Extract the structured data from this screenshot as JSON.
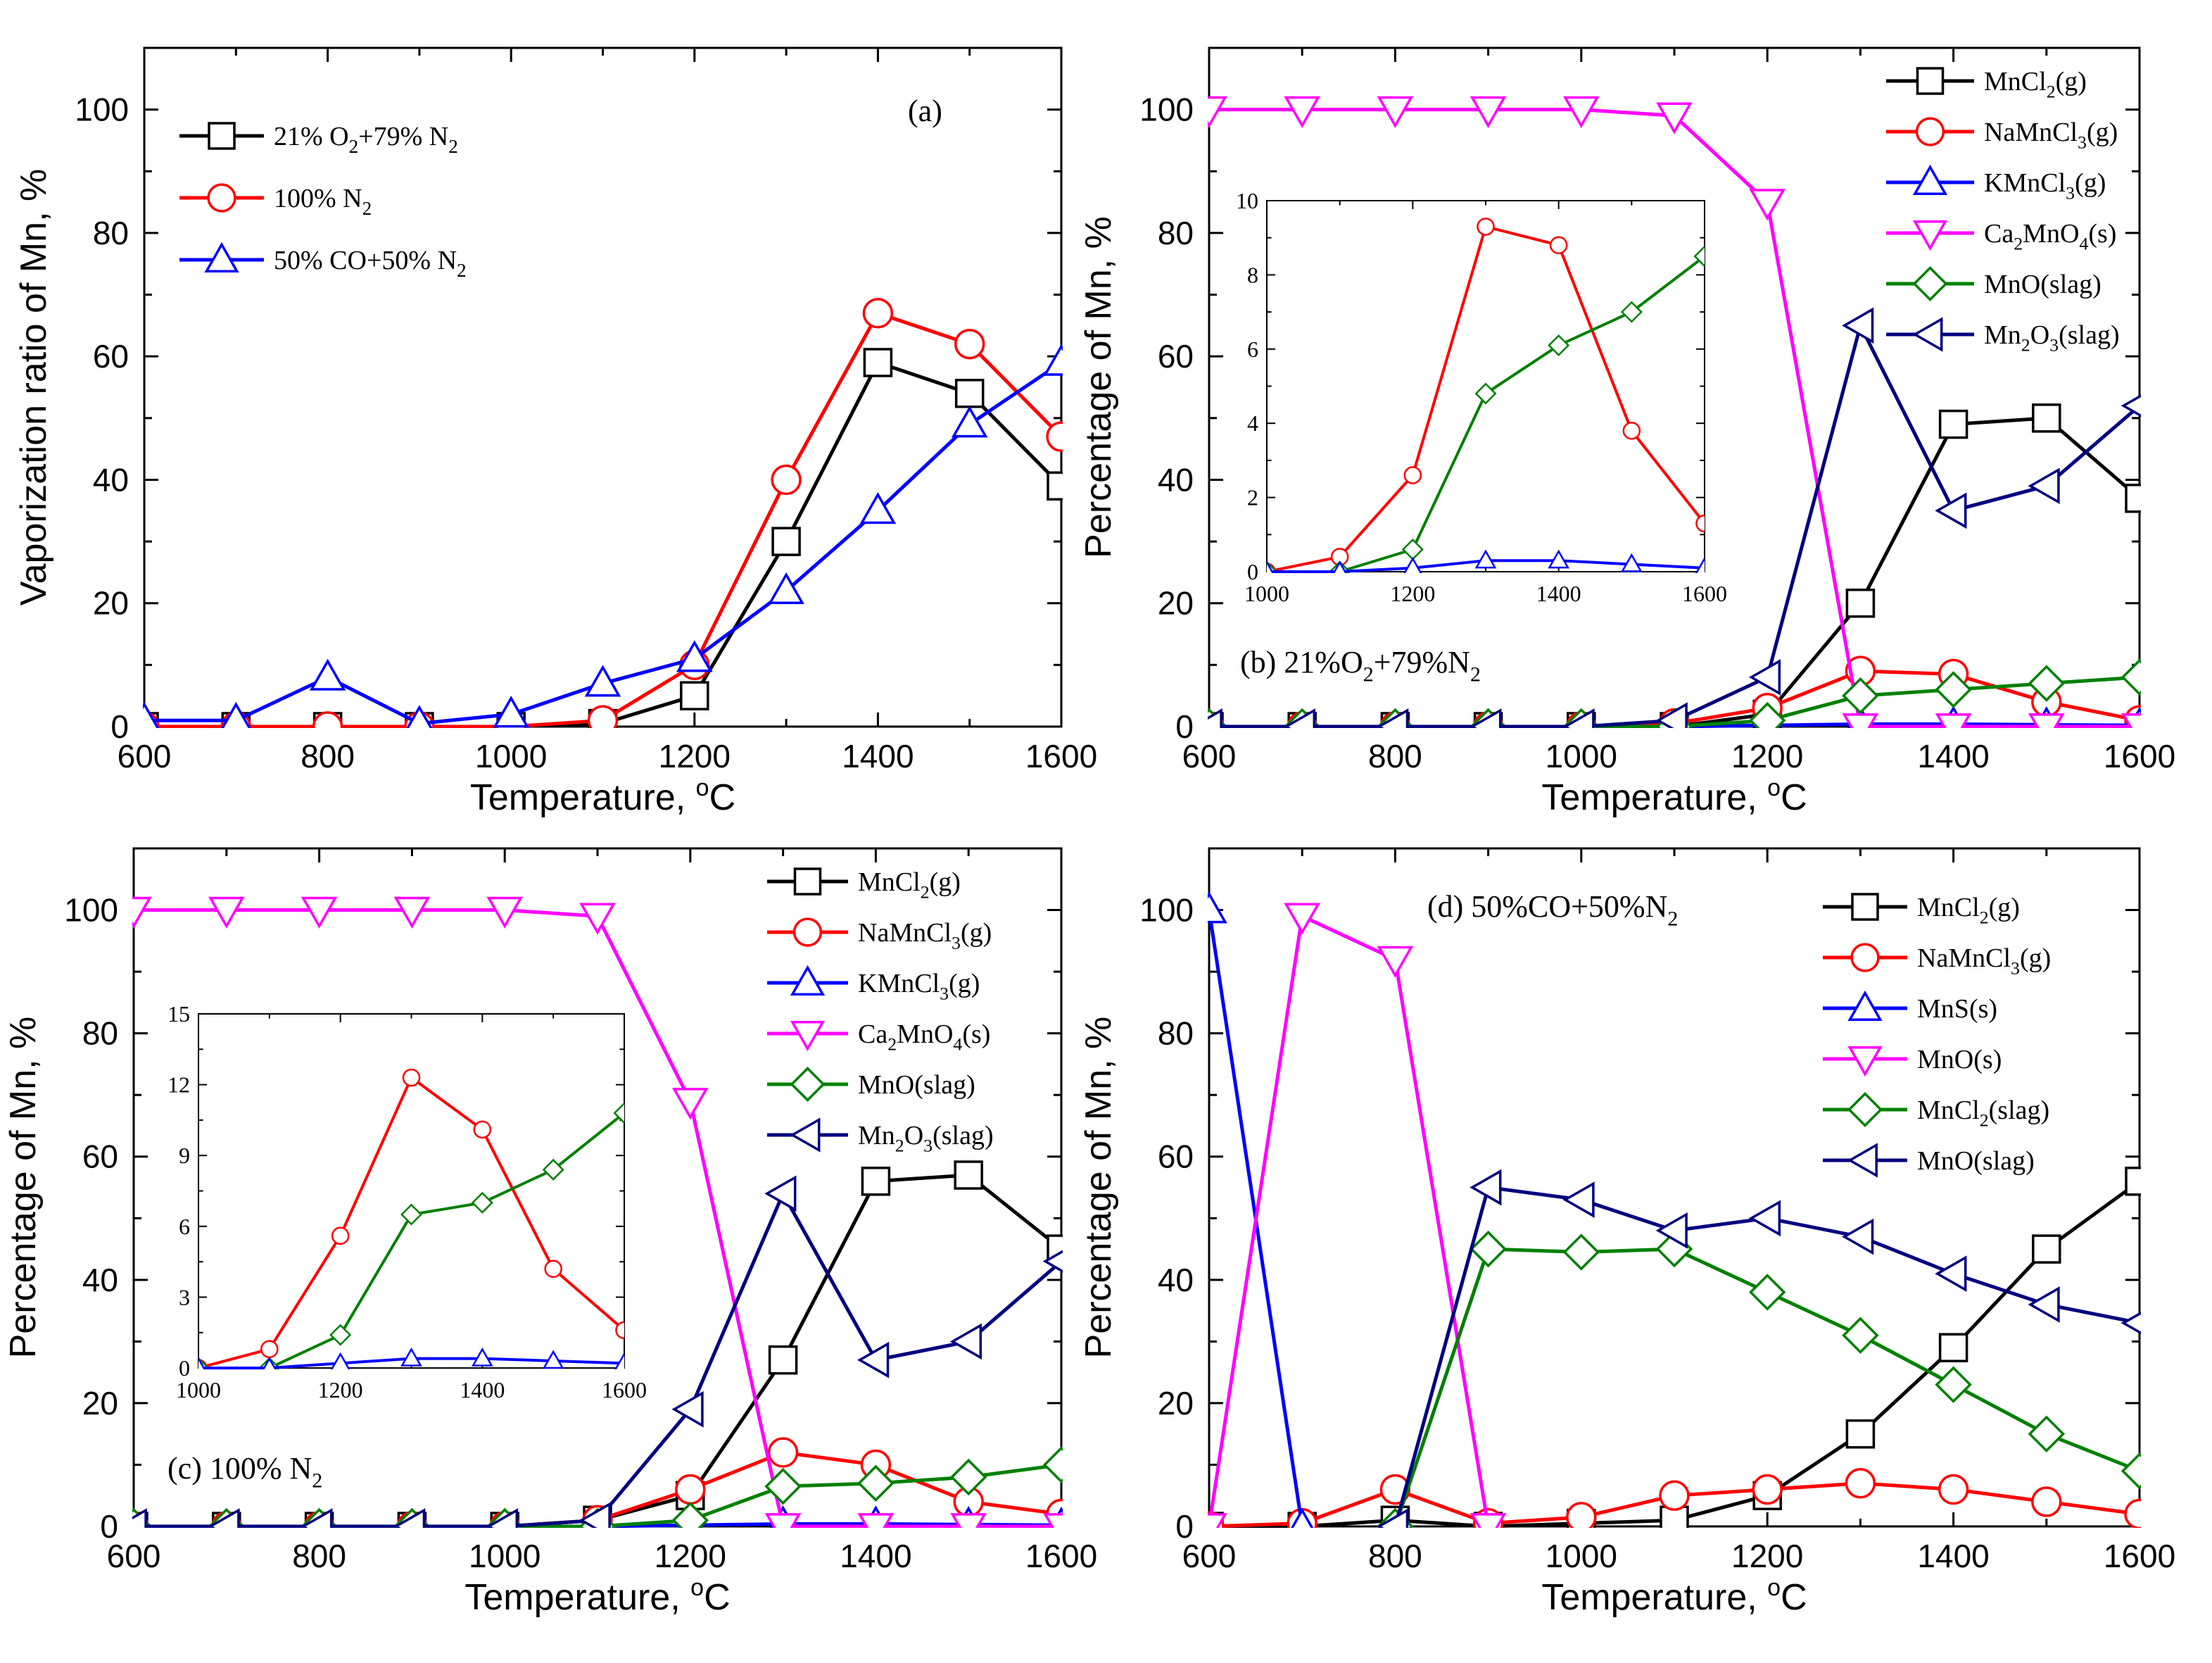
{
  "chart_data": [
    {
      "id": "a",
      "type": "line",
      "panel_label": "(a)",
      "xlabel": "Temperature, °C",
      "ylabel": "Vaporization ratio of Mn, %",
      "xlim": [
        600,
        1600
      ],
      "ylim": [
        0,
        110
      ],
      "xticks": [
        600,
        800,
        1000,
        1200,
        1400,
        1600
      ],
      "yticks": [
        0,
        20,
        40,
        60,
        80,
        100
      ],
      "legend_position": "top-left",
      "series": [
        {
          "name": "21% O2+79% N2",
          "color": "#000000",
          "marker": "square",
          "x": [
            600,
            700,
            800,
            900,
            1000,
            1100,
            1200,
            1300,
            1400,
            1500,
            1600
          ],
          "y": [
            0,
            0,
            0,
            0,
            0,
            0.5,
            5,
            30,
            59,
            54,
            39
          ]
        },
        {
          "name": "100% N2",
          "color": "#ff0000",
          "marker": "circle",
          "x": [
            600,
            700,
            800,
            900,
            1000,
            1100,
            1200,
            1300,
            1400,
            1500,
            1600
          ],
          "y": [
            0,
            0,
            0,
            0,
            0,
            1,
            10,
            40,
            67,
            62,
            47
          ]
        },
        {
          "name": "50% CO+50% N2",
          "color": "#0000ff",
          "marker": "triangle-up",
          "x": [
            600,
            700,
            800,
            900,
            1000,
            1100,
            1200,
            1300,
            1400,
            1500,
            1600
          ],
          "y": [
            1,
            1,
            8,
            0.5,
            2,
            7,
            11,
            22,
            35,
            49,
            59
          ]
        }
      ]
    },
    {
      "id": "b",
      "type": "line",
      "panel_label": "(b) 21%O2+79%N2",
      "xlabel": "Temperature, °C",
      "ylabel": "Percentage of Mn, %",
      "xlim": [
        600,
        1600
      ],
      "ylim": [
        0,
        110
      ],
      "xticks": [
        600,
        800,
        1000,
        1200,
        1400,
        1600
      ],
      "yticks": [
        0,
        20,
        40,
        60,
        80,
        100
      ],
      "legend_position": "top-right",
      "series": [
        {
          "name": "MnCl2(g)",
          "color": "#000000",
          "marker": "square",
          "x": [
            600,
            700,
            800,
            900,
            1000,
            1100,
            1200,
            1300,
            1400,
            1500,
            1600
          ],
          "y": [
            0,
            0,
            0,
            0,
            0,
            0,
            2,
            20,
            49,
            50,
            37
          ]
        },
        {
          "name": "NaMnCl3(g)",
          "color": "#ff0000",
          "marker": "circle",
          "x": [
            600,
            700,
            800,
            900,
            1000,
            1100,
            1200,
            1300,
            1400,
            1500,
            1600
          ],
          "y": [
            0,
            0,
            0,
            0,
            0,
            0.5,
            3,
            9,
            8.5,
            4,
            1
          ]
        },
        {
          "name": "KMnCl3(g)",
          "color": "#0000ff",
          "marker": "triangle-up",
          "x": [
            600,
            700,
            800,
            900,
            1000,
            1100,
            1200,
            1300,
            1400,
            1500,
            1600
          ],
          "y": [
            0,
            0,
            0,
            0,
            0,
            0,
            0.2,
            0.4,
            0.4,
            0.3,
            0.2
          ]
        },
        {
          "name": "Ca2MnO4(s)",
          "color": "#ff00ff",
          "marker": "triangle-down",
          "x": [
            600,
            700,
            800,
            900,
            1000,
            1100,
            1200,
            1300,
            1400,
            1500,
            1600
          ],
          "y": [
            100,
            100,
            100,
            100,
            100,
            99,
            85,
            0,
            0,
            0,
            0
          ]
        },
        {
          "name": "MnO(slag)",
          "color": "#008000",
          "marker": "diamond",
          "x": [
            600,
            700,
            800,
            900,
            1000,
            1100,
            1200,
            1300,
            1400,
            1500,
            1600
          ],
          "y": [
            0,
            0,
            0,
            0,
            0,
            0,
            1,
            5,
            6,
            7,
            8
          ]
        },
        {
          "name": "Mn2O3(slag)",
          "color": "#000080",
          "marker": "triangle-left",
          "x": [
            600,
            700,
            800,
            900,
            1000,
            1100,
            1200,
            1300,
            1400,
            1500,
            1600
          ],
          "y": [
            0,
            0,
            0,
            0,
            0,
            1,
            8,
            65,
            35,
            39,
            52
          ]
        }
      ],
      "inset": {
        "xlim": [
          1000,
          1600
        ],
        "ylim": [
          0,
          10
        ],
        "xticks": [
          1000,
          1200,
          1400,
          1600
        ],
        "yticks": [
          0,
          2,
          4,
          6,
          8,
          10
        ],
        "series": [
          {
            "name": "NaMnCl3(g)",
            "color": "#ff0000",
            "marker": "circle",
            "x": [
              1000,
              1100,
              1200,
              1300,
              1400,
              1500,
              1600
            ],
            "y": [
              0,
              0.4,
              2.6,
              9.3,
              8.8,
              3.8,
              1.3
            ]
          },
          {
            "name": "MnO(slag)",
            "color": "#008000",
            "marker": "diamond",
            "x": [
              1000,
              1100,
              1200,
              1300,
              1400,
              1500,
              1600
            ],
            "y": [
              0,
              0,
              0.6,
              4.8,
              6.1,
              7.0,
              8.5
            ]
          },
          {
            "name": "KMnCl3(g)",
            "color": "#0000ff",
            "marker": "triangle-up",
            "x": [
              1000,
              1100,
              1200,
              1300,
              1400,
              1500,
              1600
            ],
            "y": [
              0,
              0,
              0.1,
              0.3,
              0.3,
              0.2,
              0.1
            ]
          }
        ]
      }
    },
    {
      "id": "c",
      "type": "line",
      "panel_label": "(c) 100% N2",
      "xlabel": "Temperature, °C",
      "ylabel": "Percentage of Mn, %",
      "xlim": [
        600,
        1600
      ],
      "ylim": [
        0,
        110
      ],
      "xticks": [
        600,
        800,
        1000,
        1200,
        1400,
        1600
      ],
      "yticks": [
        0,
        20,
        40,
        60,
        80,
        100
      ],
      "legend_position": "top-right",
      "series": [
        {
          "name": "MnCl2(g)",
          "color": "#000000",
          "marker": "square",
          "x": [
            600,
            700,
            800,
            900,
            1000,
            1100,
            1200,
            1300,
            1400,
            1500,
            1600
          ],
          "y": [
            0,
            0,
            0,
            0,
            0,
            1,
            5,
            27,
            56,
            57,
            45
          ]
        },
        {
          "name": "NaMnCl3(g)",
          "color": "#ff0000",
          "marker": "circle",
          "x": [
            600,
            700,
            800,
            900,
            1000,
            1100,
            1200,
            1300,
            1400,
            1500,
            1600
          ],
          "y": [
            0,
            0,
            0,
            0,
            0,
            1,
            6,
            12,
            10,
            4,
            2
          ]
        },
        {
          "name": "KMnCl3(g)",
          "color": "#0000ff",
          "marker": "triangle-up",
          "x": [
            600,
            700,
            800,
            900,
            1000,
            1100,
            1200,
            1300,
            1400,
            1500,
            1600
          ],
          "y": [
            0,
            0,
            0,
            0,
            0,
            0,
            0.2,
            0.4,
            0.4,
            0.3,
            0.2
          ]
        },
        {
          "name": "Ca2MnO4(s)",
          "color": "#ff00ff",
          "marker": "triangle-down",
          "x": [
            600,
            700,
            800,
            900,
            1000,
            1100,
            1200,
            1300,
            1400,
            1500,
            1600
          ],
          "y": [
            100,
            100,
            100,
            100,
            100,
            99,
            69,
            0,
            0,
            0,
            0
          ]
        },
        {
          "name": "MnO(slag)",
          "color": "#008000",
          "marker": "diamond",
          "x": [
            600,
            700,
            800,
            900,
            1000,
            1100,
            1200,
            1300,
            1400,
            1500,
            1600
          ],
          "y": [
            0,
            0,
            0,
            0,
            0,
            0,
            1,
            6.5,
            7,
            8,
            10
          ]
        },
        {
          "name": "Mn2O3(slag)",
          "color": "#000080",
          "marker": "triangle-left",
          "x": [
            600,
            700,
            800,
            900,
            1000,
            1100,
            1200,
            1300,
            1400,
            1500,
            1600
          ],
          "y": [
            0,
            0,
            0,
            0,
            0,
            1,
            19,
            54,
            27,
            30,
            43
          ]
        }
      ],
      "inset": {
        "xlim": [
          1000,
          1600
        ],
        "ylim": [
          0,
          15
        ],
        "xticks": [
          1000,
          1200,
          1400,
          1600
        ],
        "yticks": [
          0,
          3,
          6,
          9,
          12,
          15
        ],
        "series": [
          {
            "name": "NaMnCl3(g)",
            "color": "#ff0000",
            "marker": "circle",
            "x": [
              1000,
              1100,
              1200,
              1300,
              1400,
              1500,
              1600
            ],
            "y": [
              0,
              0.8,
              5.6,
              12.3,
              10.1,
              4.2,
              1.6
            ]
          },
          {
            "name": "MnO(slag)",
            "color": "#008000",
            "marker": "diamond",
            "x": [
              1000,
              1100,
              1200,
              1300,
              1400,
              1500,
              1600
            ],
            "y": [
              0,
              0,
              1.4,
              6.5,
              7,
              8.4,
              10.8
            ]
          },
          {
            "name": "KMnCl3(g)",
            "color": "#0000ff",
            "marker": "triangle-up",
            "x": [
              1000,
              1100,
              1200,
              1300,
              1400,
              1500,
              1600
            ],
            "y": [
              0,
              0,
              0.2,
              0.4,
              0.4,
              0.3,
              0.2
            ]
          }
        ]
      }
    },
    {
      "id": "d",
      "type": "line",
      "panel_label": "(d) 50%CO+50%N2",
      "xlabel": "Temperature, °C",
      "ylabel": "Percentage of Mn, %",
      "xlim": [
        600,
        1600
      ],
      "ylim": [
        0,
        110
      ],
      "xticks": [
        600,
        800,
        1000,
        1200,
        1400,
        1600
      ],
      "yticks": [
        0,
        20,
        40,
        60,
        80,
        100
      ],
      "legend_position": "top-right",
      "series": [
        {
          "name": "MnCl2(g)",
          "color": "#000000",
          "marker": "square",
          "x": [
            600,
            700,
            800,
            900,
            1000,
            1100,
            1200,
            1300,
            1400,
            1500,
            1600
          ],
          "y": [
            0,
            0,
            1,
            0,
            0.5,
            1,
            5,
            15,
            29,
            45,
            56
          ]
        },
        {
          "name": "NaMnCl3(g)",
          "color": "#ff0000",
          "marker": "circle",
          "x": [
            600,
            700,
            800,
            900,
            1000,
            1100,
            1200,
            1300,
            1400,
            1500,
            1600
          ],
          "y": [
            0,
            0.5,
            6,
            0.5,
            1.5,
            5,
            6,
            7,
            6,
            4,
            2
          ]
        },
        {
          "name": "MnS(s)",
          "color": "#0000ff",
          "marker": "triangle-up",
          "x": [
            600,
            700
          ],
          "y": [
            100,
            0
          ]
        },
        {
          "name": "MnO(s)",
          "color": "#ff00ff",
          "marker": "triangle-down",
          "x": [
            600,
            700,
            800,
            900
          ],
          "y": [
            0,
            99,
            92,
            0
          ]
        },
        {
          "name": "MnCl2(slag)",
          "color": "#008000",
          "marker": "diamond",
          "x": [
            800,
            900,
            1000,
            1100,
            1200,
            1300,
            1400,
            1500,
            1600
          ],
          "y": [
            0,
            45,
            44.5,
            45,
            38,
            31,
            23,
            15,
            9
          ]
        },
        {
          "name": "MnO(slag)",
          "color": "#000080",
          "marker": "triangle-left",
          "x": [
            800,
            900,
            1000,
            1100,
            1200,
            1300,
            1400,
            1500,
            1600
          ],
          "y": [
            0,
            55,
            53,
            48,
            50,
            47,
            41,
            36,
            33
          ]
        }
      ]
    }
  ]
}
